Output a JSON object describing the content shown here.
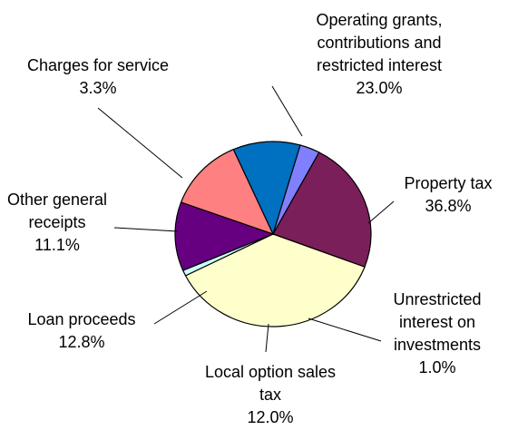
{
  "chart_data": {
    "type": "pie",
    "title": "",
    "slices": [
      {
        "lines": [
          "Operating grants,",
          "contributions and",
          "restricted interest",
          "23.0%"
        ],
        "value": 23.0,
        "color": "#7b1f5a"
      },
      {
        "lines": [
          "Property tax",
          "36.8%"
        ],
        "value": 36.8,
        "color": "#ffffcc"
      },
      {
        "lines": [
          "Unrestricted",
          "interest on",
          "investments",
          "1.0%"
        ],
        "value": 1.0,
        "color": "#ccffff"
      },
      {
        "lines": [
          "Local option sales",
          "tax",
          "12.0%"
        ],
        "value": 12.0,
        "color": "#660080"
      },
      {
        "lines": [
          "Loan proceeds",
          "12.8%"
        ],
        "value": 12.8,
        "color": "#ff8080"
      },
      {
        "lines": [
          "Other general",
          "receipts",
          "11.1%"
        ],
        "value": 11.1,
        "color": "#0070c0"
      },
      {
        "lines": [
          "Charges for service",
          "3.3%"
        ],
        "value": 3.3,
        "color": "#8080ff"
      }
    ],
    "legend": "none"
  }
}
